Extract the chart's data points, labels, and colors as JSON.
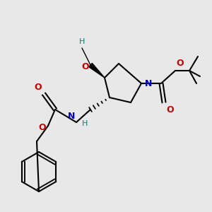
{
  "bg_color": "#e8e8e8",
  "bond_color": "#000000",
  "atom_colors": {
    "N": "#0000cc",
    "O": "#cc0000",
    "C": "#000000",
    "H": "#008080"
  },
  "line_width": 1.5,
  "font_size": 9
}
